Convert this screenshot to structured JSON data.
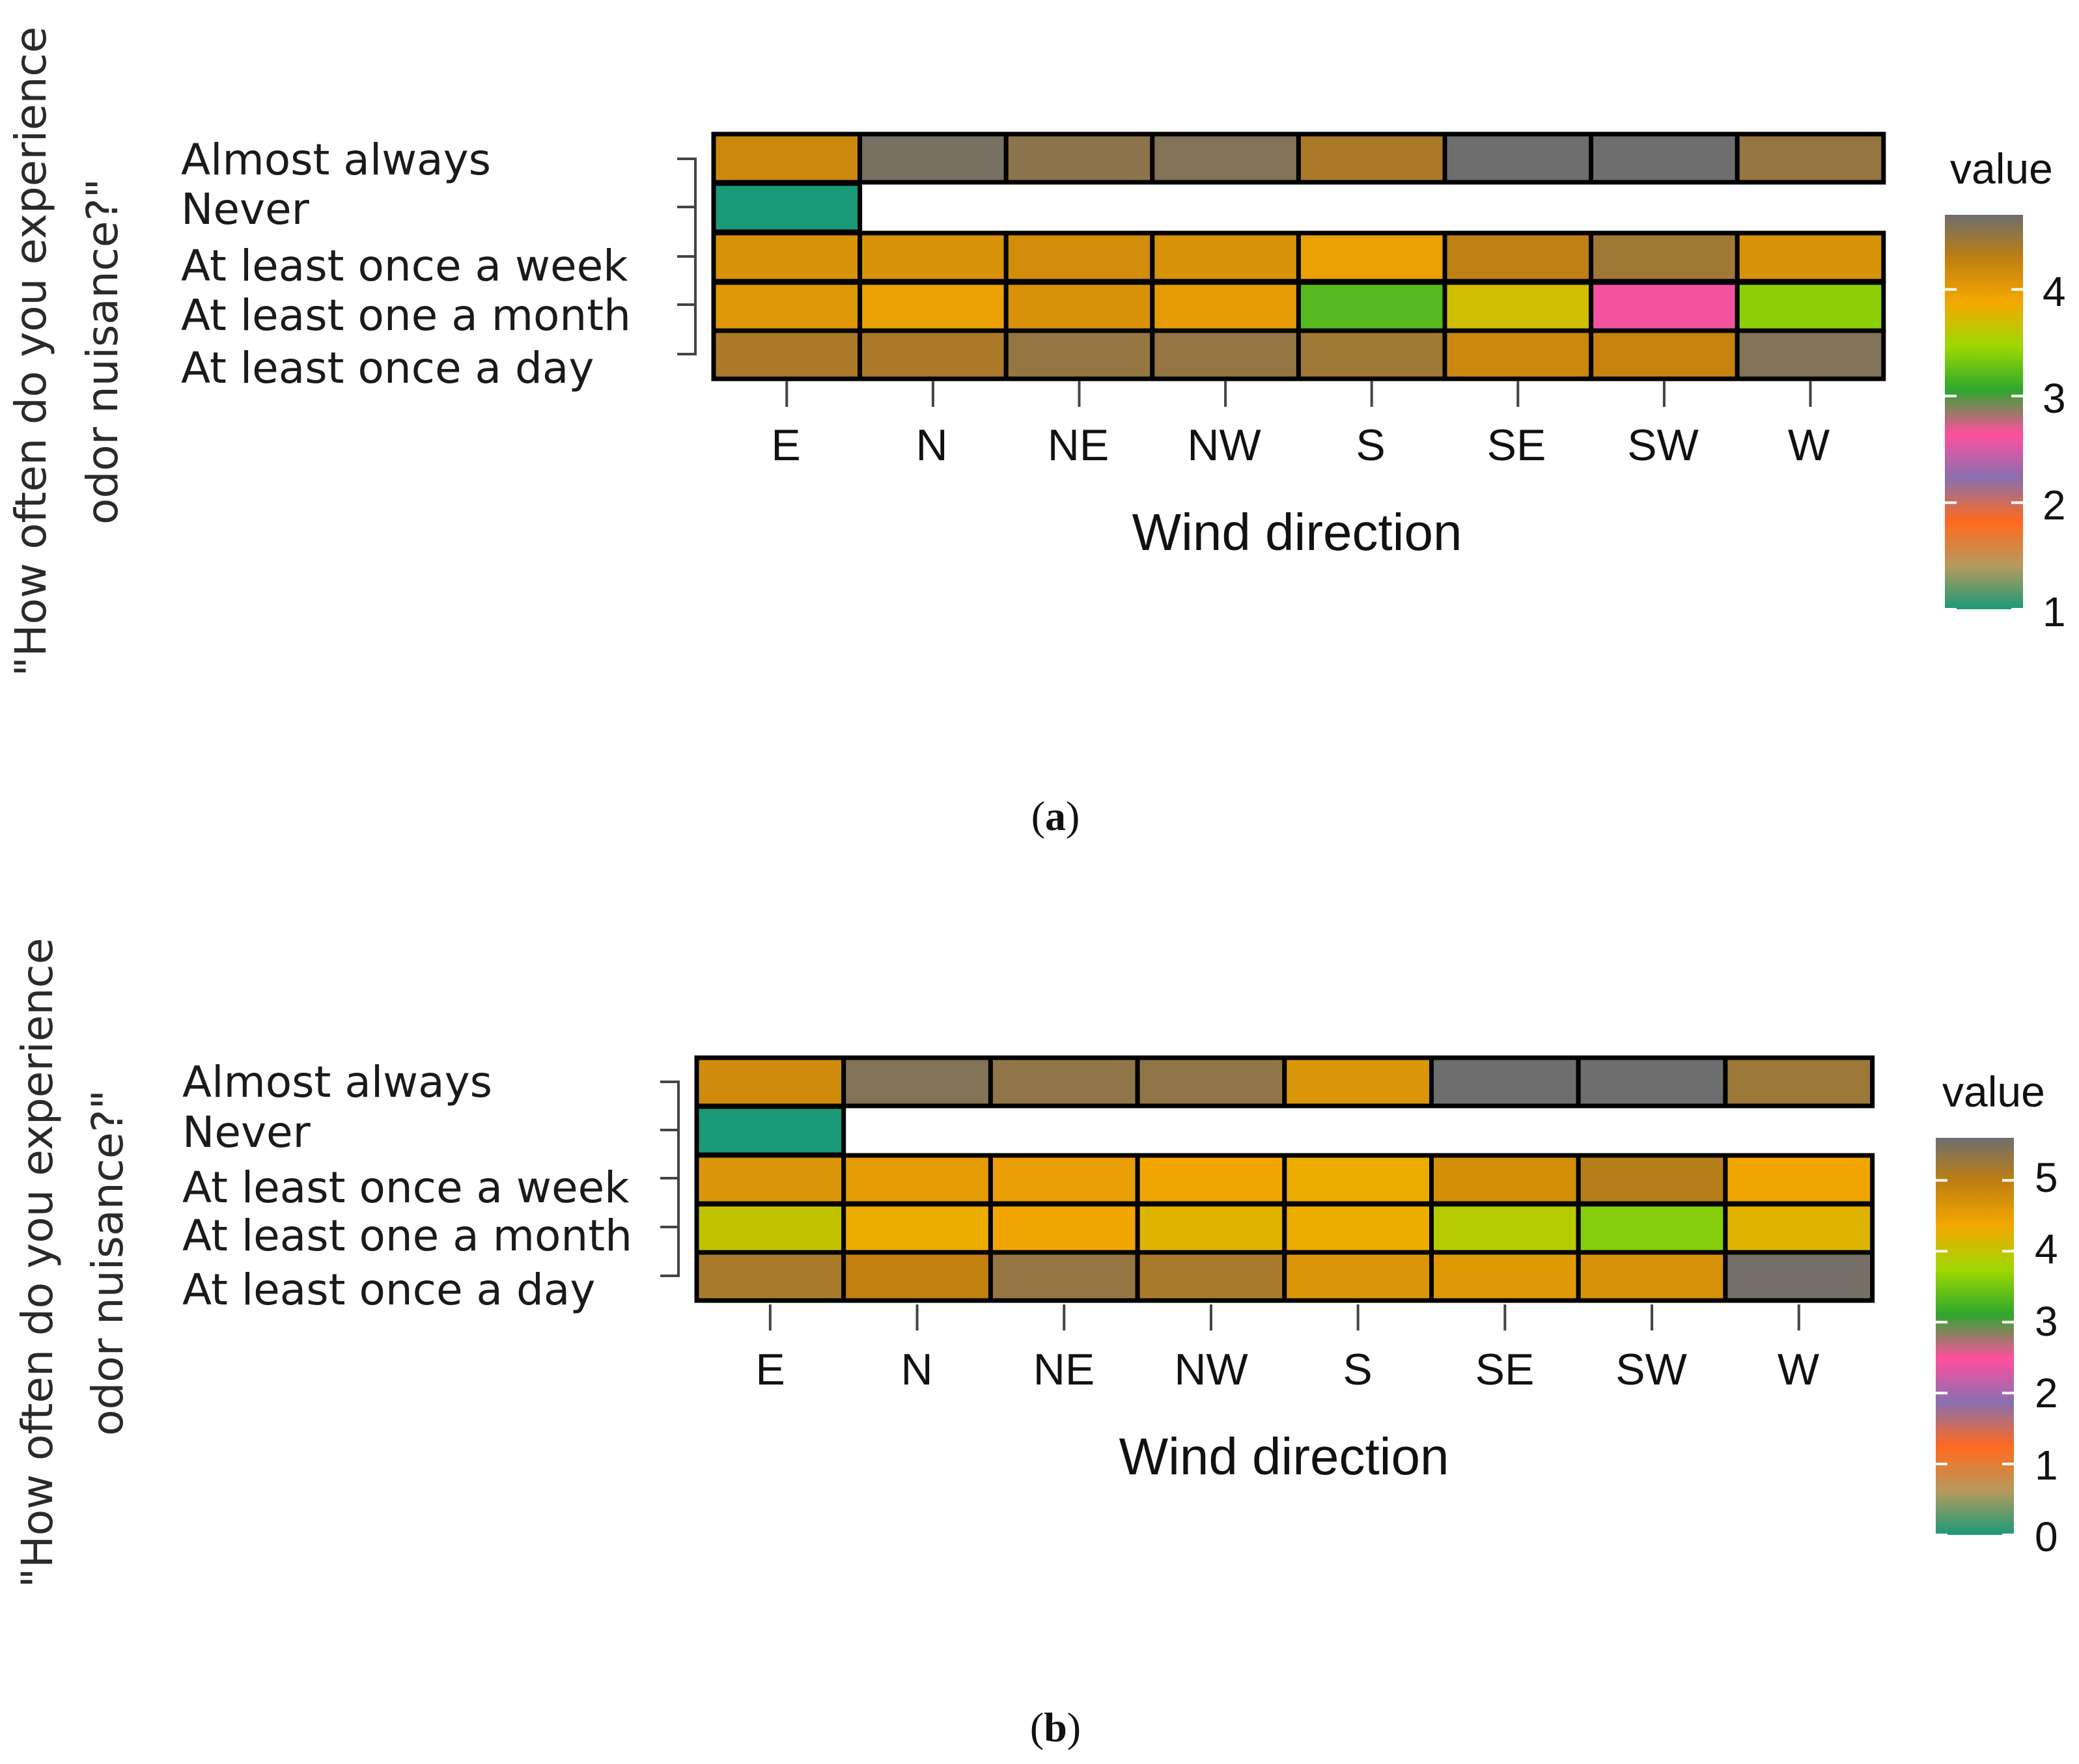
{
  "chart_data": [
    {
      "type": "heatmap",
      "panel_label": "a",
      "title": "",
      "xlabel": "Wind direction",
      "ylabel_lines": [
        "\"How often do you experience",
        "odor nuisance?\""
      ],
      "x": [
        "E",
        "N",
        "NE",
        "NW",
        "S",
        "SE",
        "SW",
        "W"
      ],
      "y": [
        "Almost always",
        "Never",
        "At least once a week",
        "At least one a month",
        "At least once a day"
      ],
      "z": [
        [
          4.2,
          4.65,
          4.55,
          4.6,
          4.4,
          4.75,
          4.75,
          4.5
        ],
        [
          1.0,
          null,
          null,
          null,
          null,
          null,
          null,
          null
        ],
        [
          4.1,
          4.1,
          4.15,
          4.1,
          3.95,
          4.3,
          4.45,
          4.1
        ],
        [
          4.05,
          3.95,
          4.1,
          4.0,
          3.2,
          3.7,
          2.6,
          3.4
        ],
        [
          4.4,
          4.4,
          4.5,
          4.5,
          4.45,
          4.2,
          4.25,
          4.6
        ]
      ],
      "colorbar": {
        "title": "value",
        "range": [
          1,
          4.7
        ],
        "ticks": [
          1,
          2,
          3,
          4
        ]
      }
    },
    {
      "type": "heatmap",
      "panel_label": "b",
      "title": "",
      "xlabel": "Wind direction",
      "ylabel_lines": [
        "\"How often do you experience",
        "odor nuisance?\""
      ],
      "x": [
        "E",
        "N",
        "NE",
        "NW",
        "S",
        "SE",
        "SW",
        "W"
      ],
      "y": [
        "Almost always",
        "Never",
        "At least once a week",
        "At least one a month",
        "At least once a day"
      ],
      "z": [
        [
          4.8,
          5.45,
          5.35,
          5.35,
          4.65,
          5.6,
          5.6,
          5.25
        ],
        [
          0.0,
          null,
          null,
          null,
          null,
          null,
          null,
          null
        ],
        [
          4.65,
          4.55,
          4.5,
          4.4,
          4.3,
          4.75,
          5.05,
          4.4
        ],
        [
          4.0,
          4.3,
          4.4,
          4.2,
          4.3,
          3.9,
          3.6,
          4.2
        ],
        [
          5.15,
          4.95,
          5.3,
          5.15,
          4.65,
          4.6,
          4.7,
          5.55
        ]
      ],
      "colorbar": {
        "title": "value",
        "range": [
          0,
          5.6
        ],
        "ticks": [
          0,
          1,
          2,
          3,
          4,
          5
        ]
      }
    }
  ],
  "captions": {
    "a_open": "(",
    "a_letter": "a",
    "a_close": ")",
    "b_open": "(",
    "b_letter": "b",
    "b_close": ")"
  },
  "colors": {
    "scale": [
      "#1a9a78",
      "#b79a5c",
      "#ff6a1e",
      "#8a6fb0",
      "#ff4f9e",
      "#2ea72e",
      "#9dd800",
      "#f4a800",
      "#c07f10",
      "#6e6e6e"
    ],
    "border": "#000000",
    "tick": "#444444"
  }
}
